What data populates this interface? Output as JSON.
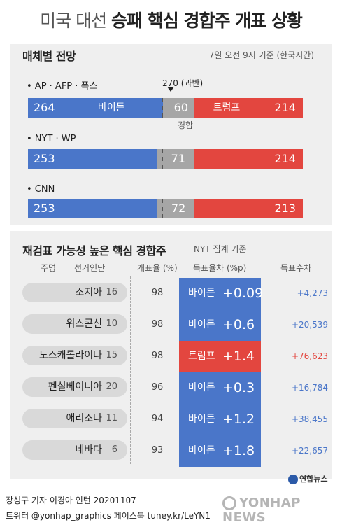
{
  "title_light": "미국 대선",
  "title_bold": "승패 핵심 경합주 개표 상황",
  "section1": {
    "heading": "매체별 전망",
    "note": "7일 오전 9시 기준 (한국시간)",
    "threshold_label": "270 (과반)",
    "biden_label": "바이든",
    "trump_label": "트럼프",
    "contested_label": "경합",
    "outlets": [
      {
        "label": "• AP · AFP · 폭스",
        "biden": "264",
        "contested": "60",
        "trump": "214"
      },
      {
        "label": "• NYT · WP",
        "biden": "253",
        "contested": "71",
        "trump": "214"
      },
      {
        "label": "• CNN",
        "biden": "253",
        "contested": "72",
        "trump": "213"
      }
    ]
  },
  "section2": {
    "heading": "재검표 가능성 높은 핵심 경합주",
    "note": "NYT 집계 기준",
    "headers": {
      "state": "주명",
      "electors": "선거인단",
      "rate": "개표율 (%)",
      "margin": "득표율차 (%p)",
      "votes": "득표수차"
    },
    "rows": [
      {
        "state": "조지아",
        "electors": "16",
        "rate": "98",
        "leader": "바이든",
        "margin": "+0.09",
        "votes": "+4,273"
      },
      {
        "state": "위스콘신",
        "electors": "10",
        "rate": "98",
        "leader": "바이든",
        "margin": "+0.6",
        "votes": "+20,539"
      },
      {
        "state": "노스캐롤라이나",
        "electors": "15",
        "rate": "98",
        "leader": "트럼프",
        "margin": "+1.4",
        "votes": "+76,623"
      },
      {
        "state": "펜실베이니아",
        "electors": "20",
        "rate": "96",
        "leader": "바이든",
        "margin": "+0.3",
        "votes": "+16,784"
      },
      {
        "state": "애리조나",
        "electors": "11",
        "rate": "94",
        "leader": "바이든",
        "margin": "+1.2",
        "votes": "+38,455"
      },
      {
        "state": "네바다",
        "electors": "6",
        "rate": "93",
        "leader": "바이든",
        "margin": "+1.8",
        "votes": "+22,657"
      }
    ]
  },
  "colors": {
    "biden": "#4a76c9",
    "trump": "#e3463f",
    "contested": "#a6a6a6"
  },
  "footer": {
    "line1": "장성구 기자  이경아 인턴  20201107",
    "line2": "트위터 @yonhap_graphics  페이스북 tuney.kr/LeYN1",
    "logo_small": "연합뉴스",
    "logo_big": "YONHAP NEWS"
  },
  "chart_data": {
    "type": "bar",
    "title": "미국 대선 승패 핵심 경합주 개표 상황",
    "categories": [
      "AP · AFP · 폭스",
      "NYT · WP",
      "CNN"
    ],
    "series": [
      {
        "name": "바이든",
        "values": [
          264,
          253,
          253
        ]
      },
      {
        "name": "경합",
        "values": [
          60,
          71,
          72
        ]
      },
      {
        "name": "트럼프",
        "values": [
          214,
          214,
          213
        ]
      }
    ],
    "threshold": 270,
    "total": 538
  }
}
